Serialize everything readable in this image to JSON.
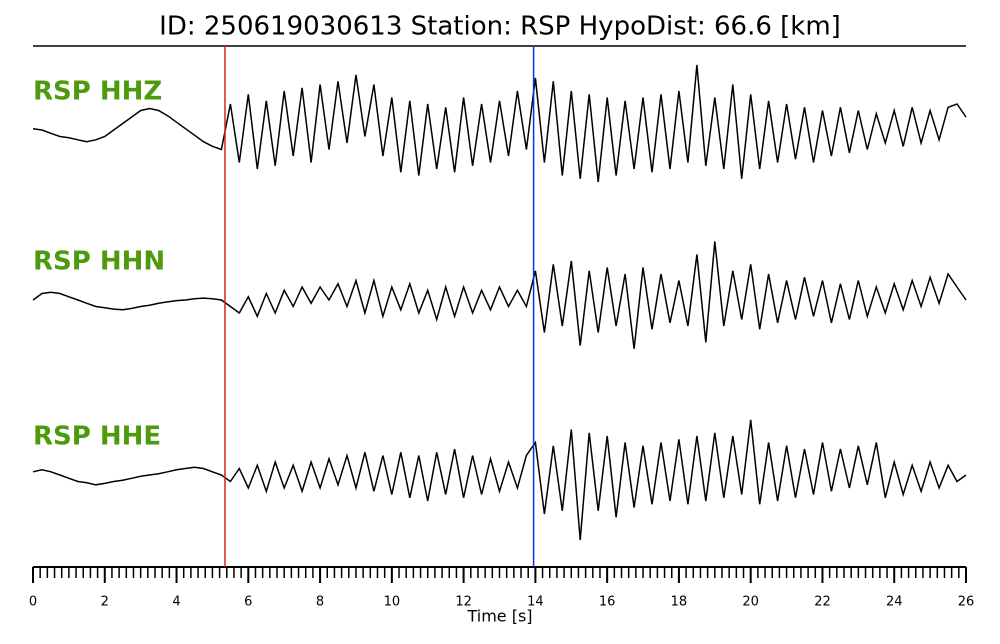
{
  "chart_data": {
    "type": "seismogram",
    "title": "ID: 250619030613   Station: RSP   HypoDist:    66.6 [km]",
    "xlabel": "Time [s]",
    "xlim": [
      0,
      26
    ],
    "xticks": [
      0,
      2,
      4,
      6,
      8,
      10,
      12,
      14,
      16,
      18,
      20,
      22,
      24,
      26
    ],
    "minor_tick_step": 0.2,
    "ylim": [
      -1,
      1
    ],
    "label_color": "#4d9a0c",
    "picks": [
      {
        "time": 5.35,
        "color": "#e02020"
      },
      {
        "time": 13.95,
        "color": "#1030e0"
      }
    ],
    "x": [
      0,
      0.25,
      0.5,
      0.75,
      1,
      1.25,
      1.5,
      1.75,
      2,
      2.25,
      2.5,
      2.75,
      3,
      3.25,
      3.5,
      3.75,
      4,
      4.25,
      4.5,
      4.75,
      5,
      5.25,
      5.5,
      5.75,
      6,
      6.25,
      6.5,
      6.75,
      7,
      7.25,
      7.5,
      7.75,
      8,
      8.25,
      8.5,
      8.75,
      9,
      9.25,
      9.5,
      9.75,
      10,
      10.25,
      10.5,
      10.75,
      11,
      11.25,
      11.5,
      11.75,
      12,
      12.25,
      12.5,
      12.75,
      13,
      13.25,
      13.5,
      13.75,
      14,
      14.25,
      14.5,
      14.75,
      15,
      15.25,
      15.5,
      15.75,
      16,
      16.25,
      16.5,
      16.75,
      17,
      17.25,
      17.5,
      17.75,
      18,
      18.25,
      18.5,
      18.75,
      19,
      19.25,
      19.5,
      19.75,
      20,
      20.25,
      20.5,
      20.75,
      21,
      21.25,
      21.5,
      21.75,
      22,
      22.25,
      22.5,
      22.75,
      23,
      23.25,
      23.5,
      23.75,
      24,
      24.25,
      24.5,
      24.75,
      25,
      25.25,
      25.5,
      25.75,
      26
    ],
    "series": [
      {
        "name": "RSP HHZ",
        "color": "#000000",
        "values": [
          0.02,
          0,
          -0.05,
          -0.1,
          -0.12,
          -0.15,
          -0.18,
          -0.15,
          -0.1,
          0,
          0.1,
          0.2,
          0.3,
          0.33,
          0.3,
          0.22,
          0.12,
          0.02,
          -0.08,
          -0.18,
          -0.25,
          -0.3,
          0.4,
          -0.5,
          0.55,
          -0.6,
          0.45,
          -0.55,
          0.6,
          -0.4,
          0.65,
          -0.5,
          0.7,
          -0.3,
          0.75,
          -0.2,
          0.85,
          -0.1,
          0.7,
          -0.4,
          0.5,
          -0.65,
          0.45,
          -0.7,
          0.4,
          -0.6,
          0.35,
          -0.65,
          0.5,
          -0.55,
          0.4,
          -0.5,
          0.45,
          -0.4,
          0.6,
          -0.3,
          0.8,
          -0.5,
          0.75,
          -0.7,
          0.6,
          -0.75,
          0.55,
          -0.8,
          0.5,
          -0.7,
          0.45,
          -0.6,
          0.5,
          -0.65,
          0.55,
          -0.6,
          0.6,
          -0.5,
          1,
          -0.55,
          0.5,
          -0.6,
          0.7,
          -0.75,
          0.55,
          -0.6,
          0.45,
          -0.5,
          0.4,
          -0.45,
          0.35,
          -0.5,
          0.3,
          -0.4,
          0.35,
          -0.35,
          0.3,
          -0.3,
          0.25,
          -0.2,
          0.3,
          -0.25,
          0.35,
          -0.2,
          0.3,
          -0.15,
          0.35,
          0.4,
          0.2
        ]
      },
      {
        "name": "RSP HHN",
        "color": "#000000",
        "values": [
          0,
          0.1,
          0.12,
          0.1,
          0.05,
          0,
          -0.05,
          -0.1,
          -0.12,
          -0.14,
          -0.15,
          -0.13,
          -0.1,
          -0.08,
          -0.05,
          -0.03,
          -0.01,
          0,
          0.02,
          0.03,
          0.02,
          0,
          -0.1,
          -0.2,
          0.05,
          -0.25,
          0.1,
          -0.2,
          0.15,
          -0.1,
          0.2,
          -0.05,
          0.2,
          0,
          0.25,
          -0.1,
          0.3,
          -0.2,
          0.3,
          -0.25,
          0.2,
          -0.15,
          0.25,
          -0.2,
          0.15,
          -0.3,
          0.2,
          -0.25,
          0.2,
          -0.2,
          0.15,
          -0.15,
          0.2,
          -0.1,
          0.15,
          -0.1,
          0.45,
          -0.5,
          0.55,
          -0.4,
          0.6,
          -0.7,
          0.45,
          -0.5,
          0.5,
          -0.4,
          0.4,
          -0.75,
          0.5,
          -0.45,
          0.4,
          -0.35,
          0.3,
          -0.4,
          0.7,
          -0.65,
          0.9,
          -0.4,
          0.45,
          -0.3,
          0.55,
          -0.45,
          0.4,
          -0.35,
          0.3,
          -0.3,
          0.35,
          -0.25,
          0.3,
          -0.35,
          0.25,
          -0.3,
          0.3,
          -0.25,
          0.2,
          -0.2,
          0.25,
          -0.15,
          0.3,
          -0.1,
          0.35,
          -0.05,
          0.4,
          0.2,
          0
        ]
      },
      {
        "name": "RSP HHE",
        "color": "#000000",
        "values": [
          0.05,
          0.08,
          0.05,
          0,
          -0.05,
          -0.1,
          -0.12,
          -0.15,
          -0.13,
          -0.1,
          -0.08,
          -0.05,
          -0.02,
          0,
          0.02,
          0.05,
          0.08,
          0.1,
          0.12,
          0.1,
          0.05,
          0,
          -0.1,
          0.1,
          -0.2,
          0.15,
          -0.25,
          0.2,
          -0.2,
          0.15,
          -0.25,
          0.2,
          -0.2,
          0.25,
          -0.15,
          0.3,
          -0.2,
          0.35,
          -0.25,
          0.3,
          -0.3,
          0.35,
          -0.35,
          0.3,
          -0.4,
          0.35,
          -0.3,
          0.4,
          -0.35,
          0.3,
          -0.3,
          0.25,
          -0.25,
          0.2,
          -0.2,
          0.3,
          0.5,
          -0.6,
          0.45,
          -0.55,
          0.7,
          -1,
          0.65,
          -0.55,
          0.6,
          -0.65,
          0.5,
          -0.5,
          0.45,
          -0.45,
          0.5,
          -0.4,
          0.55,
          -0.45,
          0.6,
          -0.4,
          0.65,
          -0.35,
          0.6,
          -0.3,
          0.85,
          -0.45,
          0.5,
          -0.4,
          0.45,
          -0.35,
          0.4,
          -0.3,
          0.5,
          -0.25,
          0.4,
          -0.2,
          0.45,
          -0.15,
          0.5,
          -0.35,
          0.2,
          -0.3,
          0.15,
          -0.25,
          0.2,
          -0.2,
          0.15,
          -0.1,
          0
        ]
      }
    ]
  }
}
